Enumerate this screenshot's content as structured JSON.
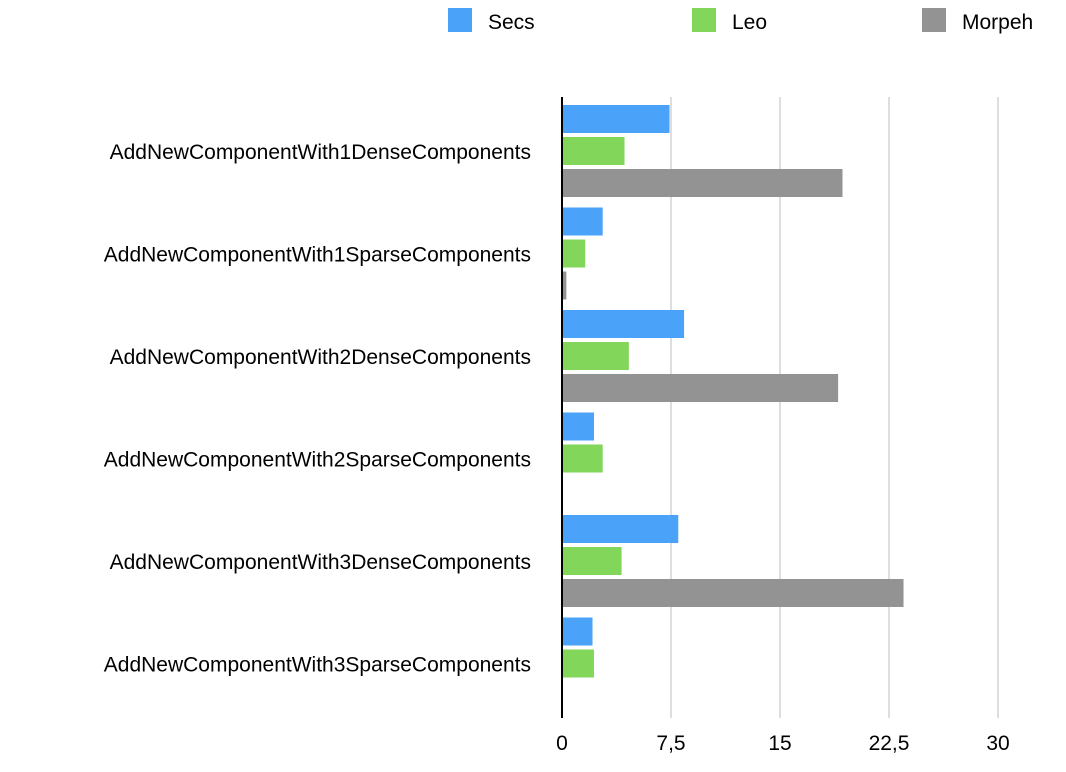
{
  "chart_data": {
    "type": "bar",
    "orientation": "horizontal",
    "categories": [
      "AddNewComponentWith1DenseComponents",
      "AddNewComponentWith1SparseComponents",
      "AddNewComponentWith2DenseComponents",
      "AddNewComponentWith2SparseComponents",
      "AddNewComponentWith3DenseComponents",
      "AddNewComponentWith3SparseComponents"
    ],
    "series": [
      {
        "name": "Secs",
        "color": "#4aa3f8",
        "values": [
          7.4,
          2.8,
          8.4,
          2.2,
          8.0,
          2.1
        ]
      },
      {
        "name": "Leo",
        "color": "#82d65a",
        "values": [
          4.3,
          1.6,
          4.6,
          2.8,
          4.1,
          2.2
        ]
      },
      {
        "name": "Morpeh",
        "color": "#939393",
        "values": [
          19.3,
          0.3,
          19.0,
          0,
          23.5,
          0
        ]
      }
    ],
    "xlim": [
      0,
      30
    ],
    "xticks": [
      0,
      7.5,
      15,
      22.5,
      30
    ],
    "xtick_labels": [
      "0",
      "7,5",
      "15",
      "22,5",
      "30"
    ],
    "grid": "vertical",
    "legend_position": "top"
  }
}
